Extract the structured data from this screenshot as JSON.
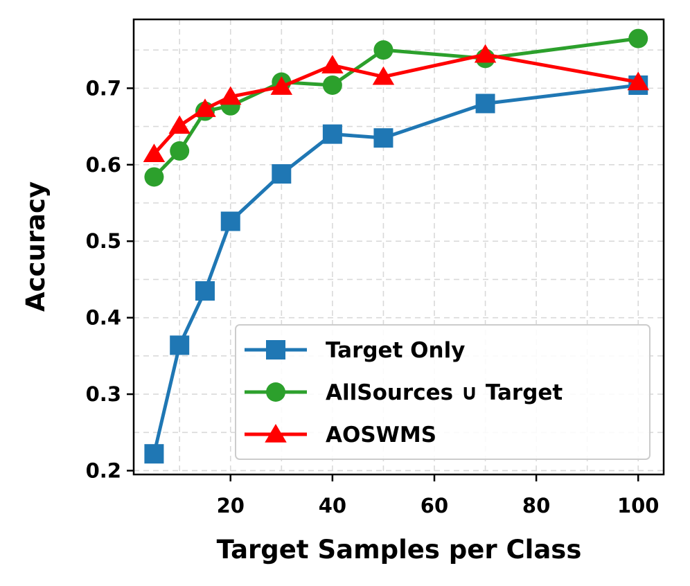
{
  "chart_data": {
    "type": "line",
    "xlabel": "Target Samples per Class",
    "ylabel": "Accuracy",
    "x": [
      5,
      10,
      15,
      20,
      30,
      40,
      50,
      70,
      100
    ],
    "xlim": [
      1,
      105
    ],
    "ylim": [
      0.195,
      0.79
    ],
    "xticks": [
      20,
      40,
      60,
      80,
      100
    ],
    "yticks": [
      0.2,
      0.3,
      0.4,
      0.5,
      0.6,
      0.7
    ],
    "xtick_labels": [
      "20",
      "40",
      "60",
      "80",
      "100"
    ],
    "ytick_labels": [
      "0.2",
      "0.3",
      "0.4",
      "0.5",
      "0.6",
      "0.7"
    ],
    "grid": true,
    "legend_position": "lower-right",
    "series": [
      {
        "name": "Target Only",
        "color": "#1f77b4",
        "marker": "square",
        "values": [
          0.222,
          0.364,
          0.435,
          0.526,
          0.588,
          0.64,
          0.635,
          0.68,
          0.704
        ]
      },
      {
        "name": "AllSources ∪ Target",
        "color": "#2ca02c",
        "marker": "circle",
        "values": [
          0.584,
          0.618,
          0.67,
          0.677,
          0.708,
          0.704,
          0.75,
          0.739,
          0.765
        ]
      },
      {
        "name": "AOSWMS",
        "color": "#ff0000",
        "marker": "triangle",
        "values": [
          0.614,
          0.651,
          0.673,
          0.689,
          0.702,
          0.73,
          0.715,
          0.744,
          0.708
        ]
      }
    ]
  }
}
